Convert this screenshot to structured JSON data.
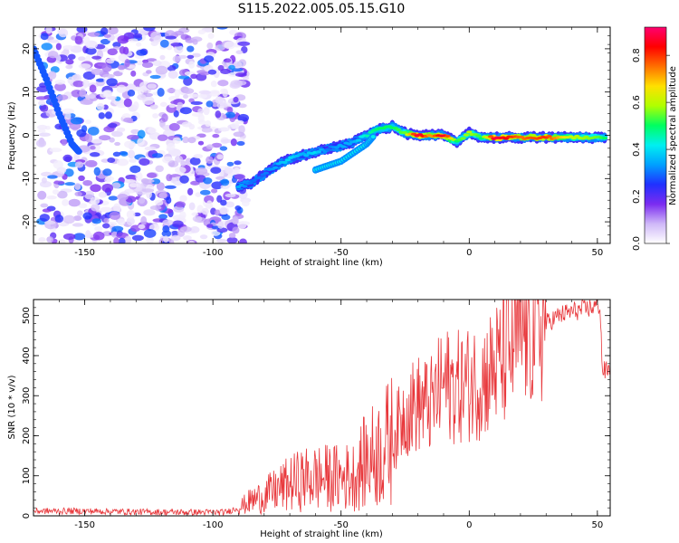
{
  "figure": {
    "title": "S115.2022.005.05.15.G10"
  },
  "chart_data": [
    {
      "type": "heatmap",
      "xlabel": "Height of straight line (km)",
      "ylabel": "Frequency (Hz)",
      "xlim": [
        -170,
        55
      ],
      "ylim": [
        -25,
        25
      ],
      "x_ticks": [
        -150,
        -100,
        -50,
        0,
        50
      ],
      "y_ticks": [
        -20,
        -10,
        0,
        10,
        20
      ],
      "colorbar": {
        "label": "Normalized spectral amplitude",
        "range": [
          0,
          0.92
        ],
        "ticks": [
          0.0,
          0.2,
          0.4,
          0.6,
          0.8
        ],
        "colors": [
          "#ffffff",
          "#cfb8f8",
          "#7b2cf0",
          "#2030ff",
          "#00a0ff",
          "#00f0f0",
          "#00ff60",
          "#b0ff00",
          "#ffe000",
          "#ff7000",
          "#ff0000",
          "#ff0070"
        ]
      },
      "noise_region": {
        "x_range": [
          -170,
          -90
        ],
        "y_range": [
          -25,
          25
        ]
      },
      "ridge": {
        "x": [
          -90,
          -85,
          -80,
          -75,
          -70,
          -65,
          -60,
          -55,
          -50,
          -45,
          -40,
          -35,
          -30,
          -25,
          -20,
          -15,
          -10,
          -5,
          0,
          5,
          10,
          20,
          30,
          40,
          50,
          53
        ],
        "y": [
          -12,
          -11,
          -9,
          -7,
          -5.5,
          -4.5,
          -4,
          -3,
          -2.5,
          -1.5,
          0,
          1.5,
          2,
          0.5,
          0,
          0,
          0,
          -1.5,
          0.5,
          -0.5,
          -0.5,
          -0.5,
          -0.5,
          -0.5,
          -0.5,
          -0.5
        ],
        "amplitude": [
          0.35,
          0.3,
          0.3,
          0.35,
          0.4,
          0.35,
          0.4,
          0.3,
          0.35,
          0.35,
          0.45,
          0.5,
          0.5,
          0.55,
          0.9,
          0.7,
          0.9,
          0.5,
          0.6,
          0.5,
          0.9,
          0.75,
          0.8,
          0.6,
          0.55,
          0.5
        ]
      },
      "side_track": {
        "x": [
          -60,
          -55,
          -50,
          -45,
          -40,
          -37
        ],
        "y": [
          -8,
          -7,
          -6,
          -4,
          -2,
          0
        ]
      },
      "diagonal_track": {
        "x": [
          -170,
          -165,
          -160,
          -155,
          -152
        ],
        "y": [
          20,
          13,
          5,
          -2,
          -4
        ]
      }
    },
    {
      "type": "line",
      "xlabel": "Height of straight line (km)",
      "ylabel": "SNR (10 * v/v)",
      "xlim": [
        -170,
        55
      ],
      "ylim": [
        0,
        540
      ],
      "x_ticks": [
        -150,
        -100,
        -50,
        0,
        50
      ],
      "y_ticks": [
        0,
        100,
        200,
        300,
        400,
        500
      ],
      "line_color": "#e8383c",
      "series": [
        {
          "x": [
            -170,
            -150,
            -130,
            -110,
            -95,
            -90,
            -85,
            -80,
            -75,
            -70,
            -65,
            -60,
            -55,
            -50,
            -45,
            -40,
            -35,
            -30,
            -25,
            -20,
            -15,
            -10,
            -5,
            0,
            5,
            10,
            15,
            20,
            25,
            30,
            35,
            40,
            45,
            50,
            51,
            52,
            55
          ],
          "y": [
            12,
            12,
            10,
            9,
            9,
            20,
            38,
            50,
            65,
            80,
            90,
            95,
            95,
            95,
            100,
            140,
            160,
            190,
            260,
            280,
            275,
            330,
            320,
            330,
            340,
            370,
            400,
            460,
            470,
            480,
            500,
            510,
            515,
            525,
            525,
            360,
            365
          ]
        }
      ]
    }
  ]
}
